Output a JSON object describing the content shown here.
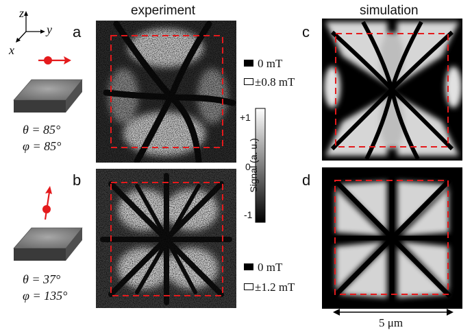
{
  "columns": {
    "experiment": "experiment",
    "simulation": "simulation"
  },
  "panels": {
    "a": "a",
    "b": "b",
    "c": "c",
    "d": "d"
  },
  "axes": {
    "z": "z",
    "y": "y",
    "x": "x"
  },
  "row1": {
    "theta": "θ = 85°",
    "phi": "φ = 85°",
    "legend_black": "0 mT",
    "legend_white": "±0.8 mT"
  },
  "row2": {
    "theta": "θ = 37°",
    "phi": "φ = 135°",
    "legend_black": "0 mT",
    "legend_white": "±1.2 mT"
  },
  "colorbar": {
    "label": "Signal (a. u.)",
    "tick_top": "+1",
    "tick_mid": "0",
    "tick_bottom": "-1"
  },
  "scalebar": {
    "label": "5 μm"
  },
  "colors": {
    "dashed_frame": "#e41a1c",
    "arrow": "#e41a1c"
  }
}
